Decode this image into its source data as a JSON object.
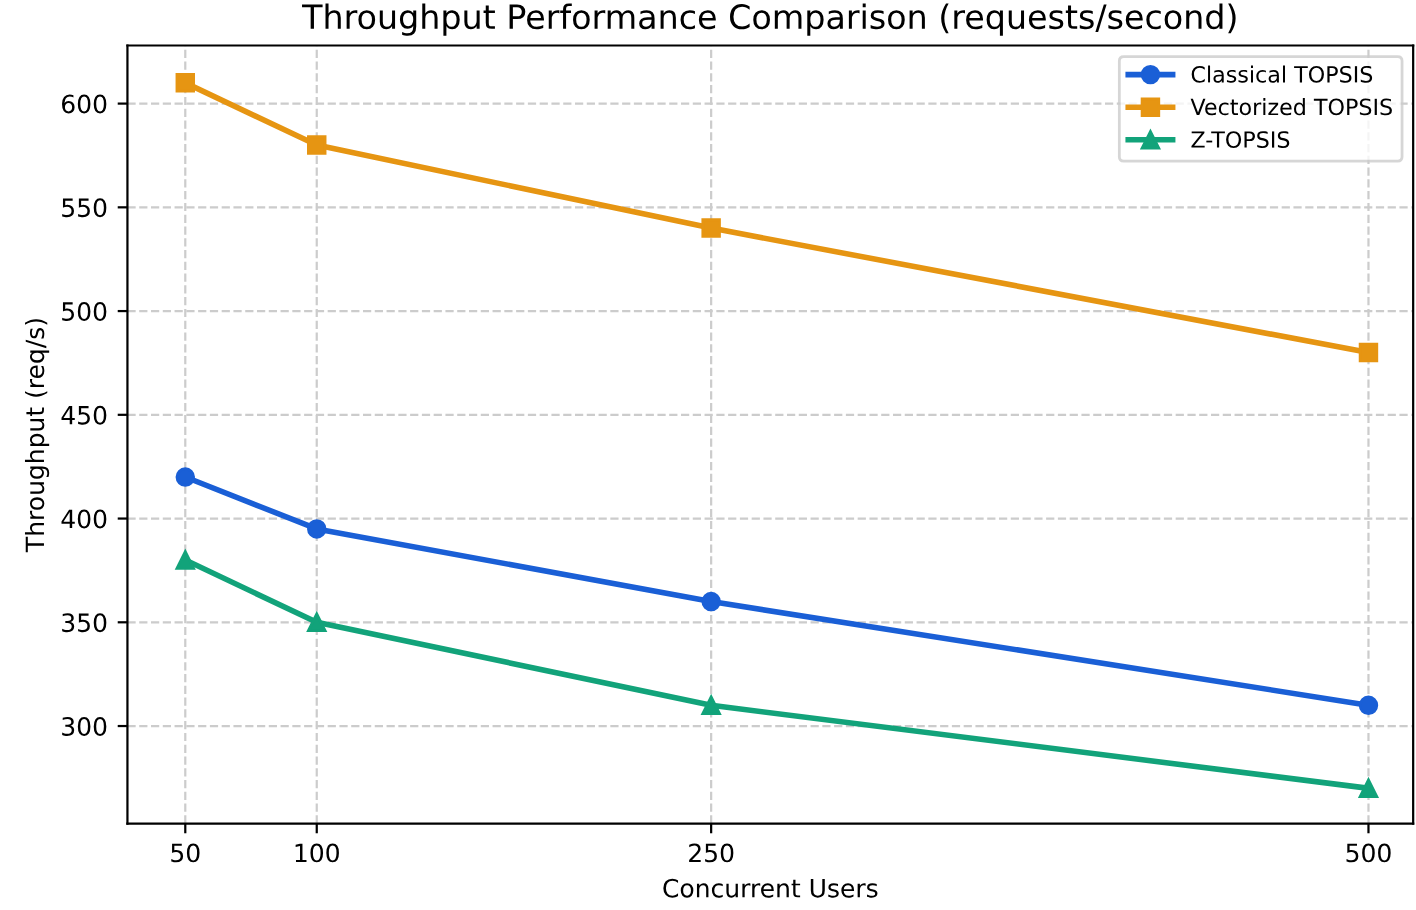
{
  "chart_data": {
    "type": "line",
    "title": "Throughput Performance Comparison (requests/second)",
    "xlabel": "Concurrent Users",
    "ylabel": "Throughput (req/s)",
    "x": [
      50,
      100,
      250,
      500
    ],
    "series": [
      {
        "name": "Classical TOPSIS",
        "color": "#1a5fd6",
        "marker": "circle",
        "values": [
          420,
          395,
          360,
          310
        ]
      },
      {
        "name": "Vectorized TOPSIS",
        "color": "#e69512",
        "marker": "square",
        "values": [
          610,
          580,
          540,
          480
        ]
      },
      {
        "name": "Z-TOPSIS",
        "color": "#12a37a",
        "marker": "triangle",
        "values": [
          380,
          350,
          310,
          270
        ]
      }
    ],
    "xlim": [
      28,
      517
    ],
    "xticks": [
      50,
      100,
      250,
      500
    ],
    "ylim": [
      253,
      628
    ],
    "yticks": [
      300,
      350,
      400,
      450,
      500,
      550,
      600
    ],
    "grid": true,
    "legend": "top right",
    "line_style": "solid"
  }
}
